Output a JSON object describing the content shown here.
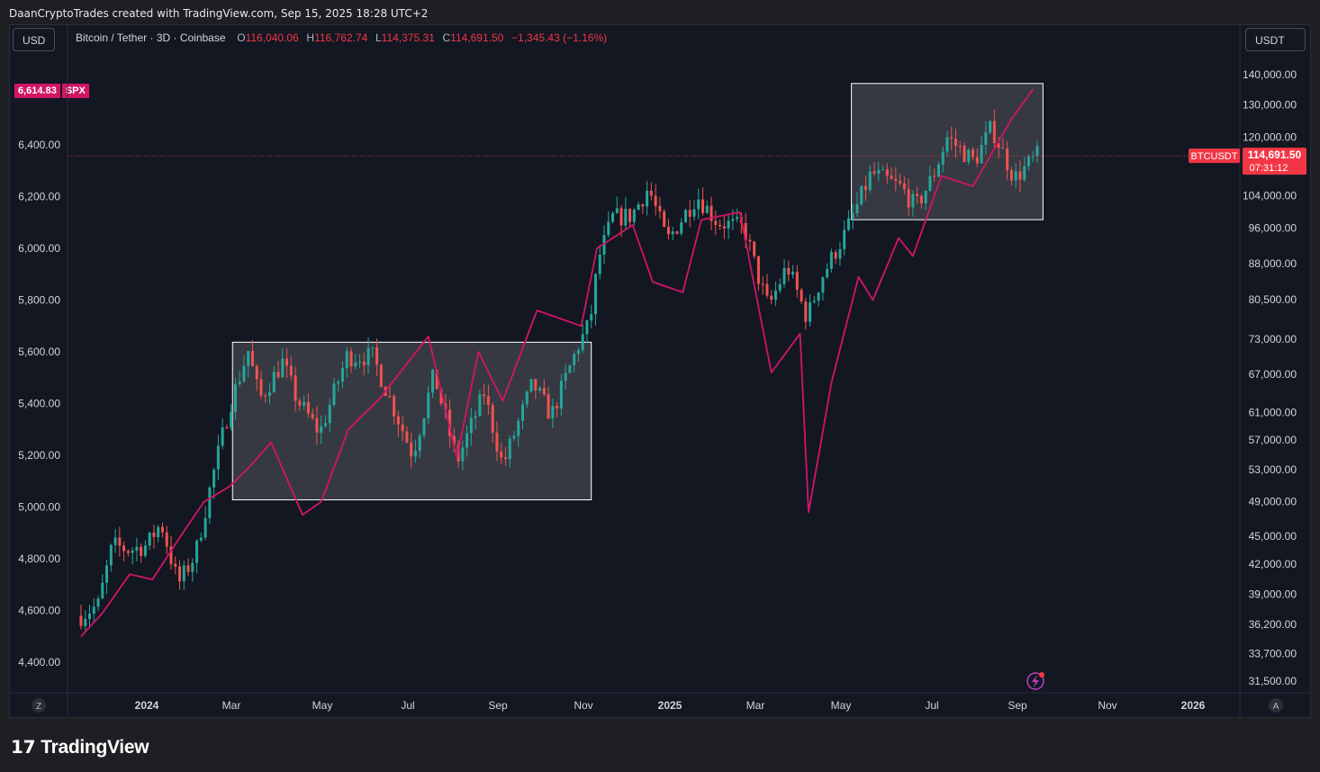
{
  "header": {
    "credit": "DaanCryptoTrades created with TradingView.com, Sep 15, 2025 18:28 UTC+2"
  },
  "left_scale_button": "USD",
  "right_scale_button": "USDT",
  "legend": {
    "symbol": "Bitcoin / Tether · 3D · Coinbase",
    "open_label": "O",
    "open": "116,040.06",
    "high_label": "H",
    "high": "116,762.74",
    "low_label": "L",
    "low": "114,375.31",
    "close_label": "C",
    "close": "114,691.50",
    "change": "−1,345.43 (−1.16%)"
  },
  "spx_tag": {
    "value": "6,614.83",
    "name": "SPX"
  },
  "btc_tag": {
    "name": "BTCUSDT",
    "price": "114,691.50",
    "countdown": "07:31:12"
  },
  "footer": {
    "logo_text": "TradingView"
  },
  "bottom_left_button": "Z",
  "bottom_right_button": "A",
  "colors": {
    "background": "#131722",
    "up": "#26a69a",
    "down": "#ef5350",
    "spx_line": "#d21564",
    "price_line": "#f23645",
    "box_fill": "#3d3f46",
    "box_border": "#ffffff"
  },
  "chart_data": {
    "type": "candlestick+line",
    "x_ticks": [
      "2024",
      "Mar",
      "May",
      "Jul",
      "Sep",
      "Nov",
      "2025",
      "Mar",
      "May",
      "Jul",
      "Sep",
      "Nov",
      "2026"
    ],
    "left_axis": {
      "series": "SPX",
      "ticks": [
        "6,400.00",
        "6,200.00",
        "6,000.00",
        "5,800.00",
        "5,600.00",
        "5,400.00",
        "5,200.00",
        "5,000.00",
        "4,800.00",
        "4,600.00",
        "4,400.00"
      ],
      "current": "6,614.83"
    },
    "right_axis": {
      "series": "BTCUSDT",
      "scale": "log",
      "ticks": [
        "140,000.00",
        "130,000.00",
        "120,000.00",
        "104,000.00",
        "96,000.00",
        "88,000.00",
        "80,500.00",
        "73,000.00",
        "67,000.00",
        "61,000.00",
        "57,000.00",
        "53,000.00",
        "49,000.00",
        "45,000.00",
        "42,000.00",
        "39,000.00",
        "36,200.00",
        "33,700.00",
        "31,500.00"
      ],
      "current": "114,691.50"
    },
    "btc_path": [
      [
        "2023-11-16",
        37000
      ],
      [
        "2023-11-28",
        38000
      ],
      [
        "2023-12-08",
        44000
      ],
      [
        "2023-12-20",
        43500
      ],
      [
        "2024-01-01",
        44000
      ],
      [
        "2024-01-11",
        46500
      ],
      [
        "2024-01-23",
        40000
      ],
      [
        "2024-02-04",
        43000
      ],
      [
        "2024-02-16",
        52000
      ],
      [
        "2024-02-28",
        62000
      ],
      [
        "2024-03-12",
        71000
      ],
      [
        "2024-03-20",
        63000
      ],
      [
        "2024-04-05",
        69000
      ],
      [
        "2024-04-15",
        63000
      ],
      [
        "2024-05-01",
        58000
      ],
      [
        "2024-05-20",
        70000
      ],
      [
        "2024-06-07",
        70000
      ],
      [
        "2024-06-24",
        60500
      ],
      [
        "2024-07-05",
        55000
      ],
      [
        "2024-07-20",
        67000
      ],
      [
        "2024-08-05",
        54000
      ],
      [
        "2024-08-24",
        64000
      ],
      [
        "2024-09-06",
        53500
      ],
      [
        "2024-09-27",
        65500
      ],
      [
        "2024-10-10",
        60500
      ],
      [
        "2024-10-29",
        72000
      ],
      [
        "2024-11-06",
        76000
      ],
      [
        "2024-11-12",
        89000
      ],
      [
        "2024-11-22",
        98500
      ],
      [
        "2024-12-05",
        99000
      ],
      [
        "2024-12-17",
        106000
      ],
      [
        "2024-12-30",
        93000
      ],
      [
        "2025-01-20",
        104000
      ],
      [
        "2025-02-03",
        97500
      ],
      [
        "2025-02-22",
        96000
      ],
      [
        "2025-03-04",
        85000
      ],
      [
        "2025-03-11",
        79000
      ],
      [
        "2025-03-24",
        87500
      ],
      [
        "2025-04-07",
        77000
      ],
      [
        "2025-04-17",
        85000
      ],
      [
        "2025-05-04",
        95000
      ],
      [
        "2025-05-22",
        110000
      ],
      [
        "2025-06-12",
        106000
      ],
      [
        "2025-06-22",
        101000
      ],
      [
        "2025-07-04",
        109000
      ],
      [
        "2025-07-14",
        120000
      ],
      [
        "2025-08-02",
        113000
      ],
      [
        "2025-08-14",
        123000
      ],
      [
        "2025-08-30",
        108500
      ],
      [
        "2025-09-15",
        114691
      ]
    ],
    "spx_path": [
      [
        "2023-11-16",
        4500
      ],
      [
        "2023-12-01",
        4590
      ],
      [
        "2023-12-20",
        4740
      ],
      [
        "2024-01-05",
        4720
      ],
      [
        "2024-01-25",
        4890
      ],
      [
        "2024-02-10",
        5020
      ],
      [
        "2024-02-28",
        5080
      ],
      [
        "2024-03-12",
        5150
      ],
      [
        "2024-03-28",
        5250
      ],
      [
        "2024-04-19",
        4970
      ],
      [
        "2024-05-02",
        5020
      ],
      [
        "2024-05-21",
        5300
      ],
      [
        "2024-06-12",
        5420
      ],
      [
        "2024-07-16",
        5660
      ],
      [
        "2024-08-05",
        5190
      ],
      [
        "2024-08-20",
        5600
      ],
      [
        "2024-09-06",
        5410
      ],
      [
        "2024-09-30",
        5760
      ],
      [
        "2024-10-31",
        5700
      ],
      [
        "2024-11-11",
        6000
      ],
      [
        "2024-12-06",
        6090
      ],
      [
        "2024-12-20",
        5870
      ],
      [
        "2025-01-10",
        5830
      ],
      [
        "2025-01-23",
        6110
      ],
      [
        "2025-02-19",
        6140
      ],
      [
        "2025-03-13",
        5520
      ],
      [
        "2025-04-02",
        5670
      ],
      [
        "2025-04-08",
        4980
      ],
      [
        "2025-04-24",
        5480
      ],
      [
        "2025-05-13",
        5890
      ],
      [
        "2025-05-23",
        5800
      ],
      [
        "2025-06-10",
        6040
      ],
      [
        "2025-06-20",
        5970
      ],
      [
        "2025-07-10",
        6280
      ],
      [
        "2025-08-01",
        6240
      ],
      [
        "2025-08-28",
        6500
      ],
      [
        "2025-09-12",
        6615
      ]
    ],
    "highlight_boxes": [
      {
        "from": "2024-03-01",
        "to": "2024-11-07",
        "price_low": 49200,
        "price_high": 72500
      },
      {
        "from": "2025-05-08",
        "to": "2025-09-19",
        "price_low": 98000,
        "price_high": 137000
      }
    ]
  }
}
